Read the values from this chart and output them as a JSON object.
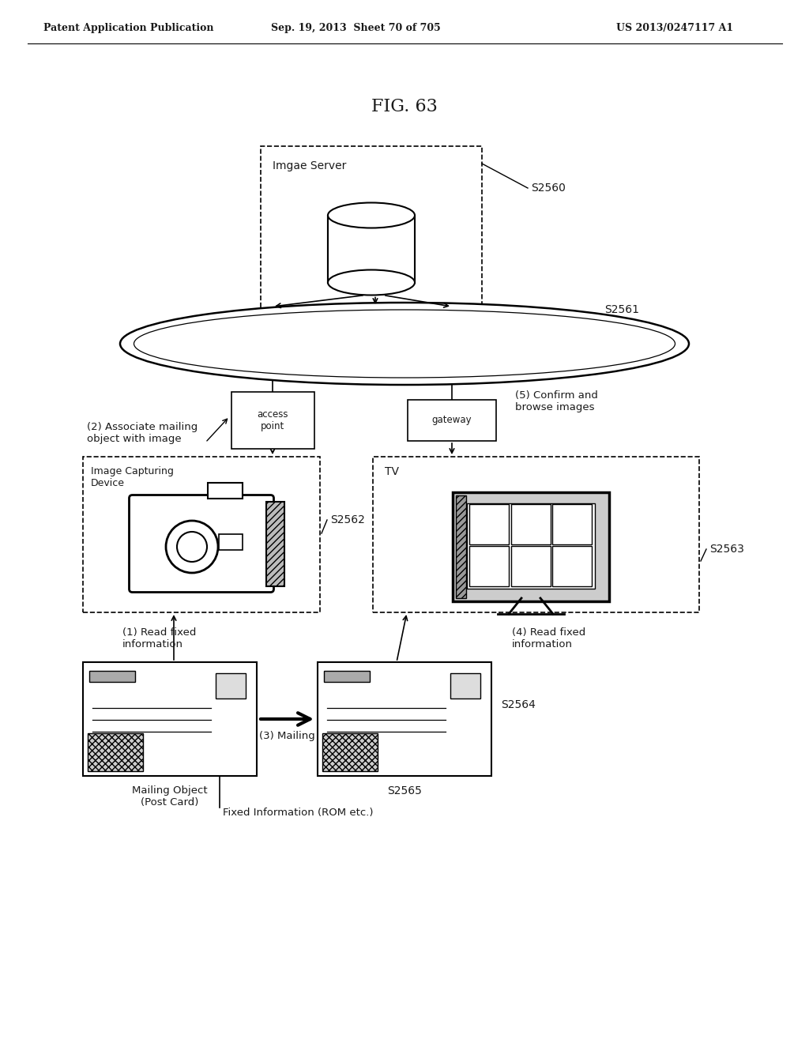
{
  "title": "FIG. 63",
  "header_left": "Patent Application Publication",
  "header_mid": "Sep. 19, 2013  Sheet 70 of 705",
  "header_right": "US 2013/0247117 A1",
  "bg_color": "#ffffff",
  "text_color": "#1a1a1a",
  "image_server": "Imgae Server",
  "s2560": "S2560",
  "network_label": "S2561",
  "access_point": "access\npoint",
  "gateway": "gateway",
  "image_device_box": "Image Capturing\nDevice",
  "s2562": "S2562",
  "tv_label": "TV",
  "s2563": "S2563",
  "step1": "(1) Read fixed\ninformation",
  "step2": "(2) Associate mailing\nobject with image",
  "step3": "(3) Mailing",
  "step4": "(4) Read fixed\ninformation",
  "step5": "(5) Confirm and\nbrowse images",
  "mailing_label": "Mailing Object\n(Post Card)",
  "s2564": "S2564",
  "s2565": "S2565",
  "fixed_info": "Fixed Information (ROM etc.)"
}
